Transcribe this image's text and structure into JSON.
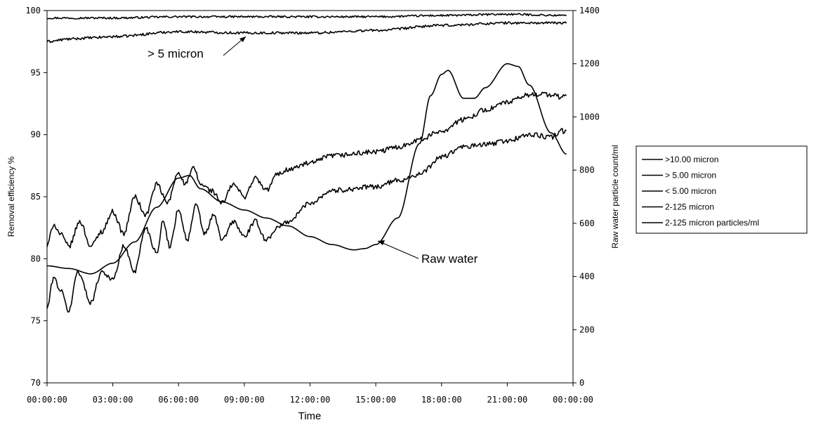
{
  "chart_data": {
    "type": "line",
    "xlabel": "Time",
    "ylabel_left": "Removal efficiency %",
    "ylabel_right": "Raw water particle count/ml",
    "x_ticks": [
      "00:00:00",
      "03:00:00",
      "06:00:00",
      "09:00:00",
      "12:00:00",
      "15:00:00",
      "18:00:00",
      "21:00:00",
      "00:00:00"
    ],
    "x_hours": [
      0,
      3,
      6,
      9,
      12,
      15,
      18,
      21,
      24
    ],
    "ylim_left": [
      70,
      100
    ],
    "yticks_left": [
      "70",
      "75",
      "80",
      "85",
      "90",
      "95",
      "100"
    ],
    "ylim_right": [
      0,
      1400
    ],
    "yticks_right": [
      "0",
      "200",
      "400",
      "600",
      "800",
      "1000",
      "1200",
      "1400"
    ],
    "legend_position": "right",
    "series": [
      {
        "name": ">10.00 micron",
        "axis": "left",
        "noise": 0.08,
        "x": [
          0,
          3,
          6,
          9,
          12,
          15,
          18,
          21,
          23.7
        ],
        "y": [
          99.4,
          99.4,
          99.5,
          99.5,
          99.5,
          99.5,
          99.6,
          99.7,
          99.6
        ]
      },
      {
        "name": "> 5.00 micron",
        "axis": "left",
        "noise": 0.1,
        "x": [
          0,
          1,
          2,
          3,
          6,
          9,
          12,
          15,
          18,
          21,
          23.7
        ],
        "y": [
          97.5,
          97.7,
          97.8,
          97.9,
          98.3,
          98.2,
          98.2,
          98.4,
          98.8,
          99.0,
          99.0
        ]
      },
      {
        "name": "< 5.00 micron",
        "axis": "left",
        "noise": 0.2,
        "x": [
          0,
          0.3,
          0.6,
          1,
          1.5,
          2,
          2.5,
          3,
          3.5,
          4,
          4.5,
          5,
          5.5,
          6,
          6.3,
          6.7,
          7,
          7.5,
          8,
          8.5,
          9,
          9.5,
          10,
          10.5,
          11,
          12,
          13,
          15,
          16,
          17,
          18,
          19,
          20,
          21,
          22,
          22.5,
          23,
          23.5,
          23.7
        ],
        "y": [
          81.0,
          82.8,
          82.0,
          81.0,
          83.0,
          81.0,
          82.2,
          83.8,
          82.0,
          85.0,
          83.5,
          86.0,
          84.5,
          87.0,
          86.0,
          87.3,
          86.0,
          85.5,
          84.5,
          86.0,
          85.0,
          86.5,
          85.5,
          86.8,
          87.2,
          87.7,
          88.3,
          88.6,
          89.0,
          89.6,
          90.3,
          91.2,
          92.0,
          92.6,
          93.2,
          93.3,
          93.2,
          93.0,
          93.3
        ]
      },
      {
        "name": "2-125 micron",
        "axis": "left",
        "noise": 0.2,
        "x": [
          0,
          0.3,
          0.6,
          1,
          1.4,
          2,
          2.5,
          3,
          3.5,
          4,
          4.5,
          5,
          5.3,
          5.6,
          6,
          6.4,
          6.8,
          7.2,
          7.6,
          8,
          8.5,
          9,
          9.5,
          10,
          10.5,
          11,
          12,
          13,
          15,
          16,
          17,
          18,
          19,
          20,
          21,
          22,
          23,
          23.5,
          23.7
        ],
        "y": [
          76.0,
          78.5,
          77.5,
          75.8,
          79.0,
          76.5,
          79.0,
          78.3,
          81.0,
          79.0,
          82.5,
          80.5,
          83.0,
          81.0,
          84.0,
          81.5,
          84.3,
          82.0,
          83.5,
          81.5,
          83.0,
          81.8,
          83.0,
          81.5,
          82.5,
          83.0,
          84.5,
          85.5,
          85.8,
          86.3,
          86.8,
          88.2,
          89.0,
          89.2,
          89.5,
          90.0,
          89.8,
          90.3,
          90.2
        ]
      },
      {
        "name": "2-125 micron particles/ml",
        "axis": "right",
        "noise": 0,
        "x": [
          0,
          1,
          2,
          3,
          4,
          5,
          6,
          6.5,
          7,
          8,
          9,
          10,
          11,
          12,
          13,
          14,
          14.5,
          15,
          16,
          17,
          17.5,
          18,
          18.3,
          19,
          19.5,
          20,
          21,
          21.5,
          22,
          23,
          23.7
        ],
        "y": [
          440,
          430,
          410,
          450,
          530,
          660,
          770,
          780,
          730,
          680,
          650,
          620,
          590,
          550,
          520,
          500,
          505,
          520,
          620,
          900,
          1080,
          1160,
          1175,
          1070,
          1070,
          1110,
          1200,
          1190,
          1120,
          940,
          860
        ]
      }
    ],
    "annotations": [
      {
        "text": "> 5 micron",
        "series": 1
      },
      {
        "text": "Raw water",
        "series": 4
      }
    ]
  }
}
